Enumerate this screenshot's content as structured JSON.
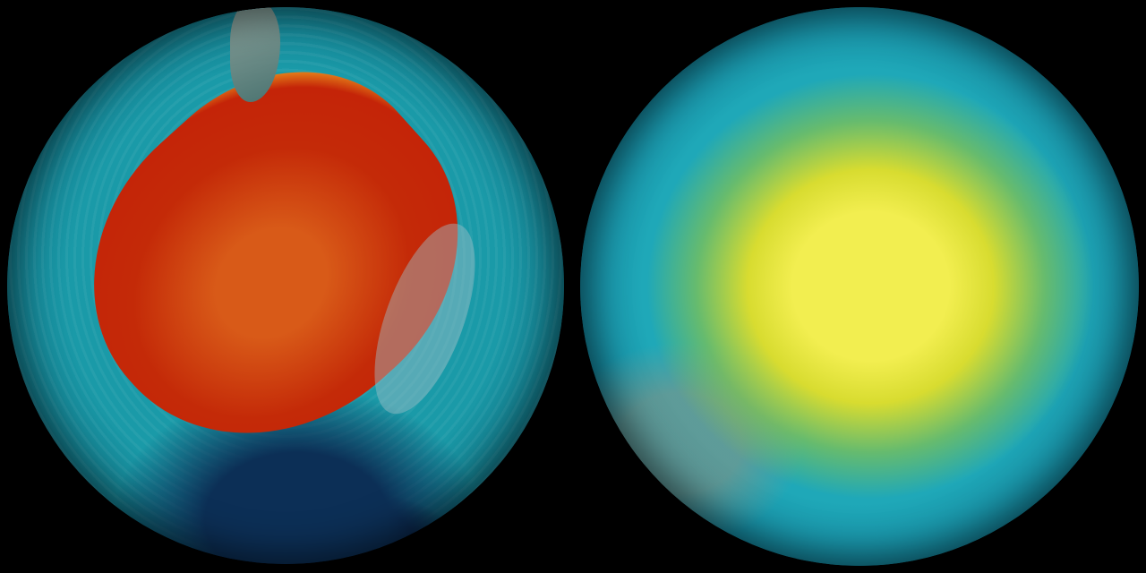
{
  "scene": {
    "background_color": "#000000",
    "globes": [
      {
        "view": "southern-hemisphere",
        "colors": {
          "core": "#c42408",
          "edge": "#f5e040",
          "surround": "#1a9aa8"
        }
      },
      {
        "view": "northern-hemisphere",
        "colors": {
          "core": "#f2ee50",
          "surround": "#1fa8b8"
        }
      }
    ]
  }
}
